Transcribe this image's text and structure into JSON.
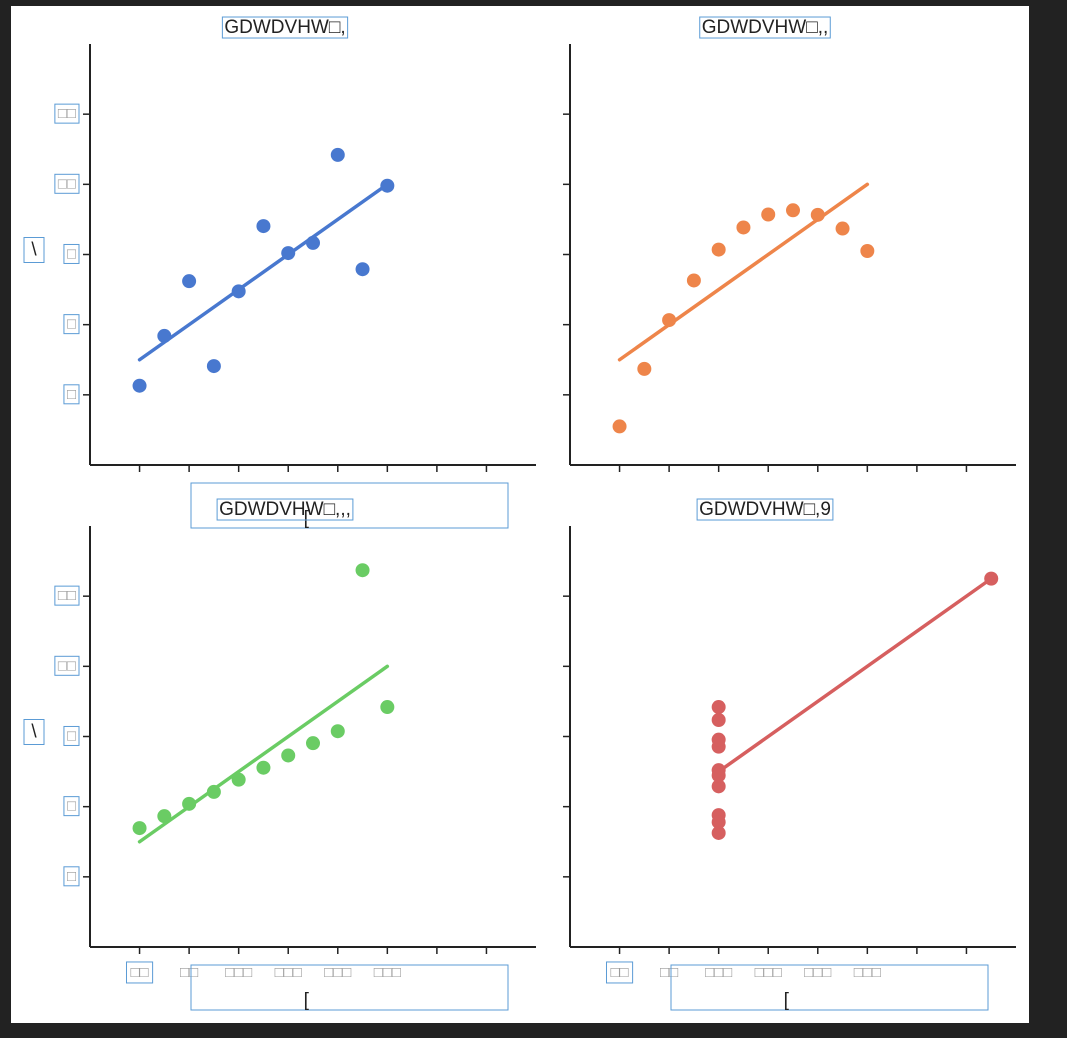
{
  "figure": {
    "background": "#ffffff",
    "frame_color": "#222222",
    "annotation_box_color": "#5b9bd5"
  },
  "chart_data": [
    {
      "type": "scatter",
      "title": "GDWDVHW□,",
      "xlabel": "[",
      "ylabel": "\\",
      "xlim": [
        2,
        20
      ],
      "ylim": [
        2,
        14
      ],
      "x_ticks": [
        4,
        6,
        8,
        10,
        12,
        14,
        16,
        18
      ],
      "x_tick_labels": [],
      "y_ticks": [
        4,
        6,
        8,
        10,
        12
      ],
      "y_tick_labels": [
        "□",
        "□",
        "□",
        "□□",
        "□□"
      ],
      "color": "#4878cf",
      "points": [
        [
          10,
          8.04
        ],
        [
          8,
          6.95
        ],
        [
          13,
          7.58
        ],
        [
          9,
          8.81
        ],
        [
          11,
          8.33
        ],
        [
          14,
          9.96
        ],
        [
          6,
          7.24
        ],
        [
          4,
          4.26
        ],
        [
          12,
          10.84
        ],
        [
          7,
          4.82
        ],
        [
          5,
          5.68
        ]
      ],
      "fit": [
        [
          4,
          5.0
        ],
        [
          14,
          10.0
        ]
      ]
    },
    {
      "type": "scatter",
      "title": "GDWDVHW□,,",
      "xlabel": "",
      "ylabel": "",
      "xlim": [
        2,
        20
      ],
      "ylim": [
        2,
        14
      ],
      "x_ticks": [
        4,
        6,
        8,
        10,
        12,
        14,
        16,
        18
      ],
      "x_tick_labels": [],
      "y_ticks": [
        4,
        6,
        8,
        10,
        12
      ],
      "y_tick_labels": [],
      "color": "#ee854a",
      "points": [
        [
          10,
          9.14
        ],
        [
          8,
          8.14
        ],
        [
          13,
          8.74
        ],
        [
          9,
          8.77
        ],
        [
          11,
          9.26
        ],
        [
          14,
          8.1
        ],
        [
          6,
          6.13
        ],
        [
          4,
          3.1
        ],
        [
          12,
          9.13
        ],
        [
          7,
          7.26
        ],
        [
          5,
          4.74
        ]
      ],
      "fit": [
        [
          4,
          5.0
        ],
        [
          14,
          10.0
        ]
      ]
    },
    {
      "type": "scatter",
      "title": "GDWDVHW□,,,",
      "xlabel": "[",
      "ylabel": "\\",
      "xlim": [
        2,
        20
      ],
      "ylim": [
        2,
        14
      ],
      "x_ticks": [
        4,
        6,
        8,
        10,
        12,
        14,
        16,
        18
      ],
      "x_tick_labels": [
        "□□",
        "□□",
        "□□□",
        "□□□",
        "□□□",
        "□□□"
      ],
      "y_ticks": [
        4,
        6,
        8,
        10,
        12
      ],
      "y_tick_labels": [
        "□",
        "□",
        "□",
        "□□",
        "□□"
      ],
      "color": "#6acc64",
      "points": [
        [
          10,
          7.46
        ],
        [
          8,
          6.77
        ],
        [
          13,
          12.74
        ],
        [
          9,
          7.11
        ],
        [
          11,
          7.81
        ],
        [
          14,
          8.84
        ],
        [
          6,
          6.08
        ],
        [
          4,
          5.39
        ],
        [
          12,
          8.15
        ],
        [
          7,
          6.42
        ],
        [
          5,
          5.73
        ]
      ],
      "fit": [
        [
          4,
          5.0
        ],
        [
          14,
          10.0
        ]
      ]
    },
    {
      "type": "scatter",
      "title": "GDWDVHW□,9",
      "xlabel": "[",
      "ylabel": "",
      "xlim": [
        2,
        20
      ],
      "ylim": [
        2,
        14
      ],
      "x_ticks": [
        4,
        6,
        8,
        10,
        12,
        14,
        16,
        18
      ],
      "x_tick_labels": [
        "□□",
        "□□",
        "□□□",
        "□□□",
        "□□□",
        "□□□"
      ],
      "y_ticks": [
        4,
        6,
        8,
        10,
        12
      ],
      "y_tick_labels": [],
      "color": "#d65f5f",
      "points": [
        [
          8,
          6.58
        ],
        [
          8,
          5.76
        ],
        [
          8,
          7.71
        ],
        [
          8,
          8.84
        ],
        [
          8,
          8.47
        ],
        [
          8,
          7.04
        ],
        [
          8,
          5.25
        ],
        [
          19,
          12.5
        ],
        [
          8,
          5.56
        ],
        [
          8,
          7.91
        ],
        [
          8,
          6.89
        ]
      ],
      "fit": [
        [
          8,
          7.0
        ],
        [
          19,
          12.5
        ]
      ]
    }
  ]
}
